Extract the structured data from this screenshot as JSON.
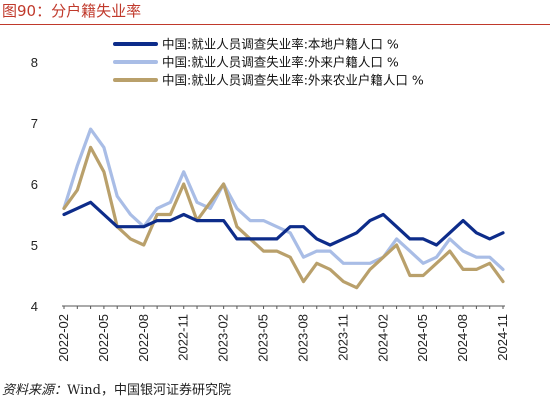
{
  "figure": {
    "title": "图90：分户籍失业率",
    "source_label": "资料来源：",
    "source_text": "Wind，中国银河证券研究院"
  },
  "chart_data": {
    "type": "line",
    "x": [
      "2022-02",
      "2022-03",
      "2022-04",
      "2022-05",
      "2022-06",
      "2022-07",
      "2022-08",
      "2022-09",
      "2022-10",
      "2022-11",
      "2022-12",
      "2023-01",
      "2023-02",
      "2023-03",
      "2023-04",
      "2023-05",
      "2023-06",
      "2023-07",
      "2023-08",
      "2023-09",
      "2023-10",
      "2023-11",
      "2023-12",
      "2024-01",
      "2024-02",
      "2024-03",
      "2024-04",
      "2024-05",
      "2024-06",
      "2024-07",
      "2024-08",
      "2024-09",
      "2024-10",
      "2024-11"
    ],
    "x_tick_labels": [
      "2022-02",
      "2022-05",
      "2022-08",
      "2022-11",
      "2023-02",
      "2023-05",
      "2023-08",
      "2023-11",
      "2024-02",
      "2024-05",
      "2024-08",
      "2024-11"
    ],
    "ylim": [
      4,
      8
    ],
    "y_ticks": [
      "4",
      "5",
      "6",
      "7",
      "8"
    ],
    "grid": false,
    "legend_position": "top",
    "series": [
      {
        "name": "中国:就业人员调查失业率:本地户籍人口 %",
        "color": "#0d2c8a",
        "values": [
          5.5,
          5.6,
          5.7,
          5.5,
          5.3,
          5.3,
          5.3,
          5.4,
          5.4,
          5.5,
          5.4,
          5.4,
          5.4,
          5.1,
          5.1,
          5.1,
          5.1,
          5.3,
          5.3,
          5.1,
          5.0,
          5.1,
          5.2,
          5.4,
          5.5,
          5.3,
          5.1,
          5.1,
          5.0,
          5.2,
          5.4,
          5.2,
          5.1,
          5.2
        ]
      },
      {
        "name": "中国:就业人员调查失业率:外来户籍人口 %",
        "color": "#a9bde6",
        "values": [
          5.6,
          6.3,
          6.9,
          6.6,
          5.8,
          5.5,
          5.3,
          5.6,
          5.7,
          6.2,
          5.7,
          5.6,
          6.0,
          5.6,
          5.4,
          5.4,
          5.3,
          5.2,
          4.8,
          4.9,
          4.9,
          4.7,
          4.7,
          4.7,
          4.8,
          5.1,
          4.9,
          4.7,
          4.8,
          5.1,
          4.9,
          4.8,
          4.8,
          4.6
        ]
      },
      {
        "name": "中国:就业人员调查失业率:外来农业户籍人口 %",
        "color": "#b9a06b",
        "values": [
          5.6,
          5.9,
          6.6,
          6.2,
          5.3,
          5.1,
          5.0,
          5.5,
          5.5,
          6.0,
          5.4,
          5.7,
          6.0,
          5.3,
          5.1,
          4.9,
          4.9,
          4.8,
          4.4,
          4.7,
          4.6,
          4.4,
          4.3,
          4.6,
          4.8,
          5.0,
          4.5,
          4.5,
          4.7,
          4.9,
          4.6,
          4.6,
          4.7,
          4.4
        ]
      }
    ]
  }
}
